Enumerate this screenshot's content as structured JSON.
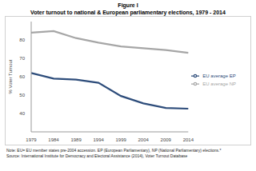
{
  "chart_data": {
    "type": "line",
    "title": "Figure I",
    "subtitle": "Voter turnout to national & European parliamentary elections, 1979 - 2014",
    "y_label": "% Voter Turnout",
    "categories": [
      "1979",
      "1984",
      "1989",
      "1994",
      "1999",
      "2004",
      "2009",
      "2014"
    ],
    "series": [
      {
        "name": "EU average EP",
        "color": "#2e4d7b",
        "values": [
          62,
          59,
          58.4,
          56.7,
          49.5,
          45.5,
          43,
          42.6
        ]
      },
      {
        "name": "EU average NP",
        "color": "#a6a6a6",
        "values": [
          84,
          84.8,
          81,
          78.5,
          76.5,
          75.5,
          74.5,
          73
        ]
      }
    ],
    "ylim": [
      30,
      90
    ],
    "yticks": [
      40,
      50,
      60,
      70,
      80
    ],
    "grid": false,
    "legend": "right",
    "annotations": [
      "Note: EU= EU member states pre-2004 accession. EP (European Parliamentary), NP (National Parliamentary) elections.*",
      "Source: International Institute for Democracy and Electoral Assistance (2014), Voter Turnout Database"
    ]
  }
}
